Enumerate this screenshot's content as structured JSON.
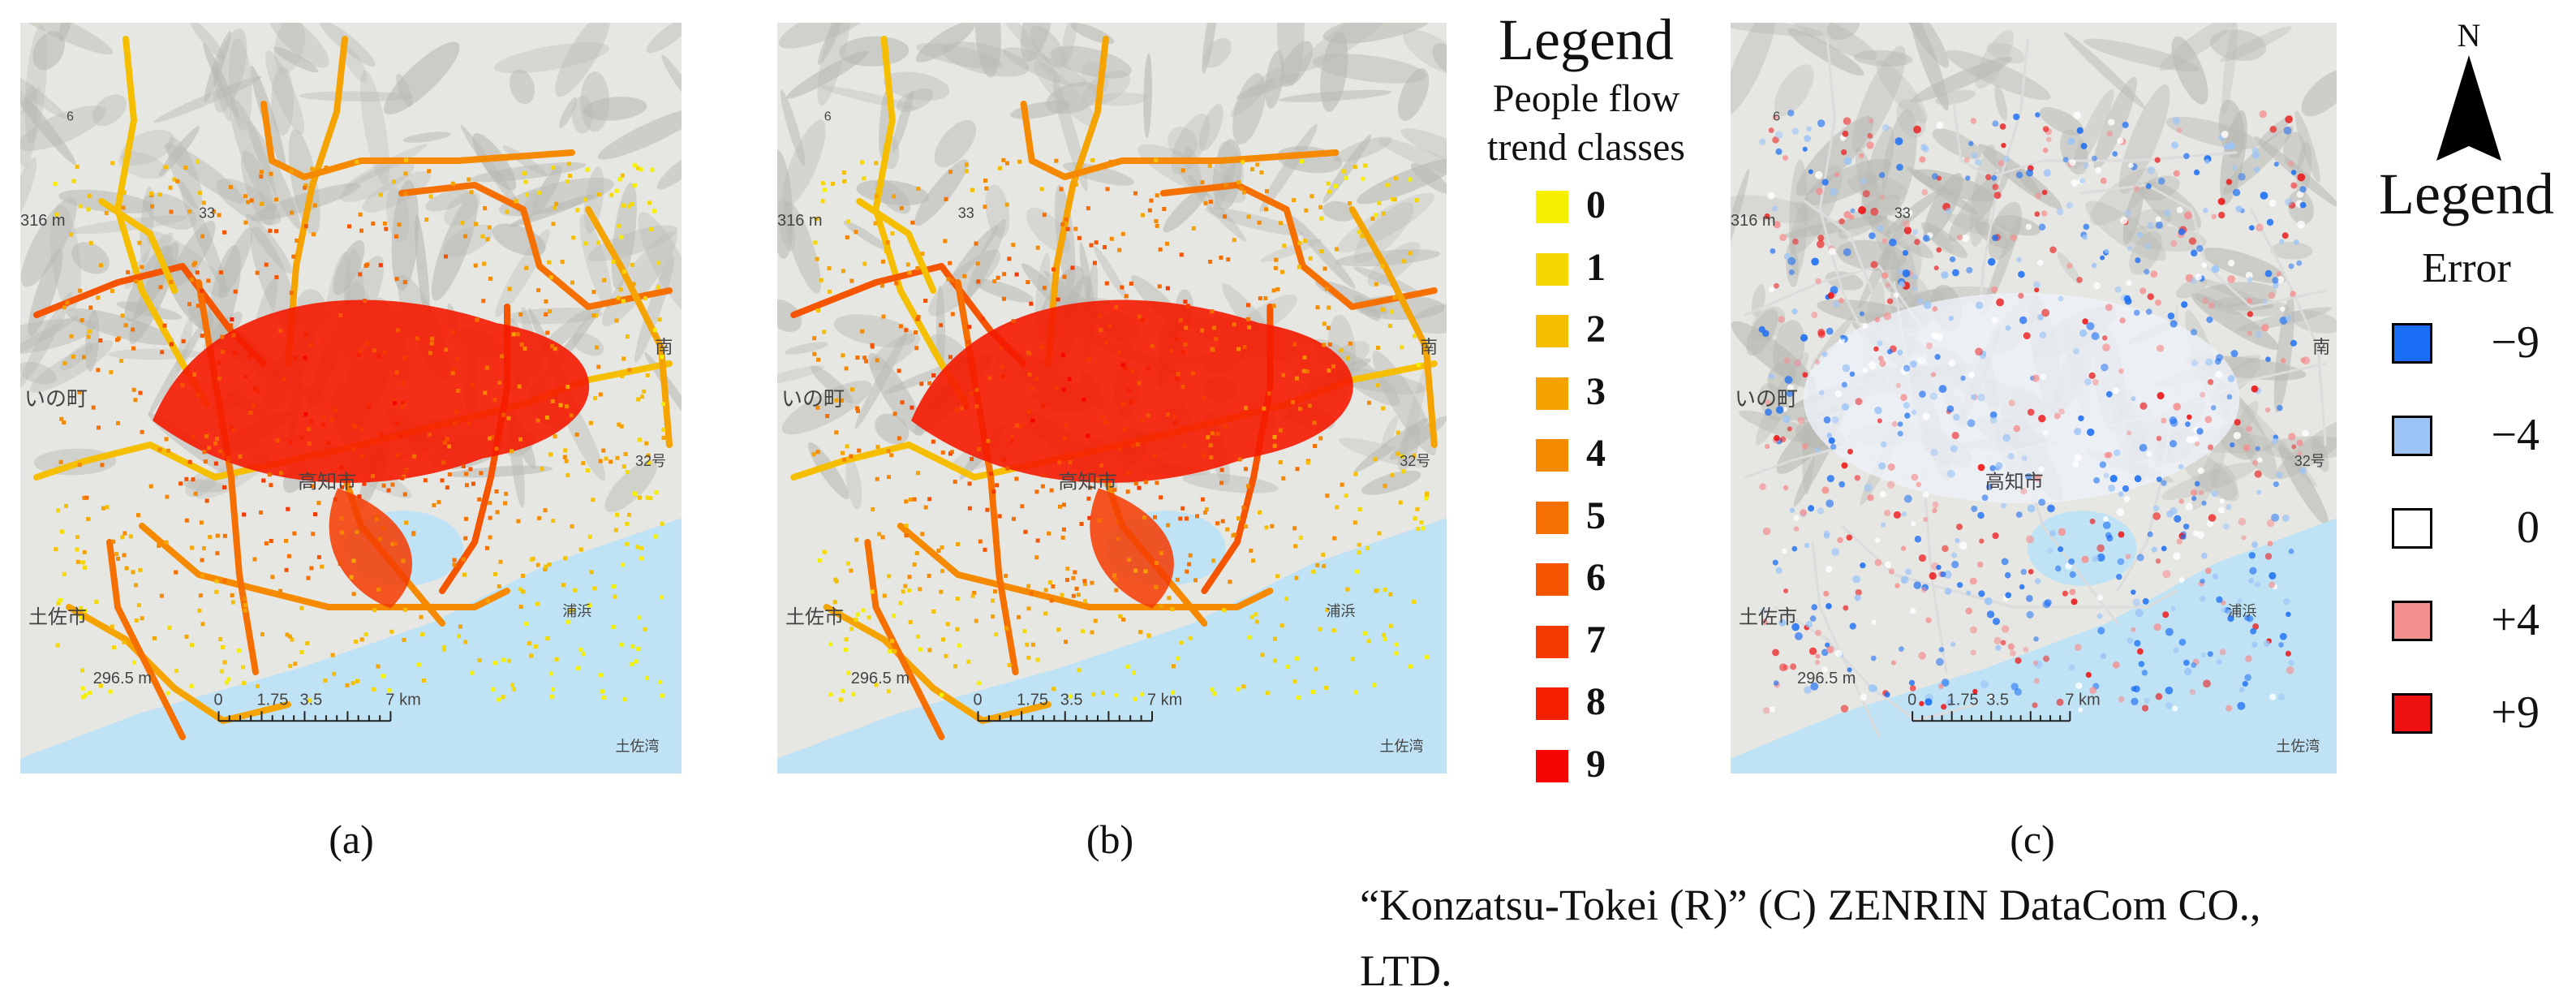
{
  "panels": [
    {
      "id": "a",
      "caption": "(a)"
    },
    {
      "id": "b",
      "caption": "(b)"
    },
    {
      "id": "c",
      "caption": "(c)"
    }
  ],
  "map_labels": {
    "town_west": "いの町",
    "city": "高知市",
    "tosa": "土佐市",
    "elev1": "316 m",
    "elev2": "296.5 m",
    "route33": "33",
    "route32": "32号",
    "route6": "6",
    "beach": "浦浜",
    "bay": "土佐湾",
    "south": "南"
  },
  "scale_bar": {
    "ticks": [
      "0",
      "1.75",
      "3.5",
      "7 km"
    ]
  },
  "legend_classes": {
    "title": "Legend",
    "subtitle_line1": "People flow",
    "subtitle_line2": "trend classes",
    "items": [
      {
        "label": "0",
        "color": "#f5ef00"
      },
      {
        "label": "1",
        "color": "#f5d800"
      },
      {
        "label": "2",
        "color": "#f5bf00"
      },
      {
        "label": "3",
        "color": "#f5a300"
      },
      {
        "label": "4",
        "color": "#f58a00"
      },
      {
        "label": "5",
        "color": "#f57000"
      },
      {
        "label": "6",
        "color": "#f55500"
      },
      {
        "label": "7",
        "color": "#f53a00"
      },
      {
        "label": "8",
        "color": "#f52000"
      },
      {
        "label": "9",
        "color": "#f50500"
      }
    ]
  },
  "legend_error": {
    "north": "N",
    "title": "Legend",
    "subtitle": "Error",
    "items": [
      {
        "label": "−9",
        "color": "#1a6ef5"
      },
      {
        "label": "−4",
        "color": "#9cc4f7"
      },
      {
        "label": "0",
        "color": "#ffffff"
      },
      {
        "label": "+4",
        "color": "#f48f8f"
      },
      {
        "label": "+9",
        "color": "#ee1111"
      }
    ]
  },
  "credit_line1": "“Konzatsu-Tokei (R)” (C) ZENRIN DataCom CO.,",
  "credit_line2": "LTD.",
  "colors": {
    "sea": "#bfe3f5",
    "land": "#e6e6e3",
    "relief": "#b9b9b4"
  }
}
